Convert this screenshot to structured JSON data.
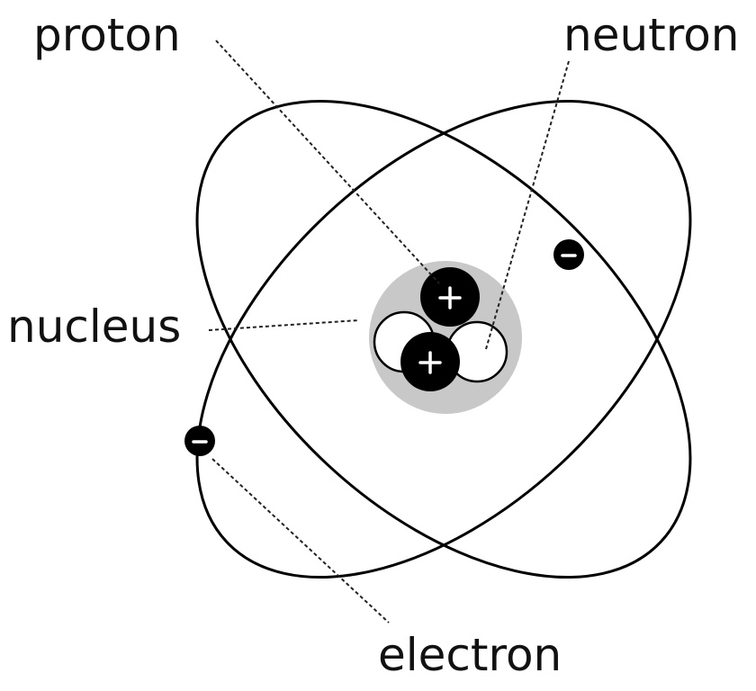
{
  "labels": {
    "proton": "proton",
    "neutron": "neutron",
    "nucleus": "nucleus",
    "electron": "electron"
  },
  "colors": {
    "nucleus_halo": "#c8c8c8",
    "proton": "#000000",
    "neutron": "#ffffff",
    "electron": "#000000",
    "orbit": "#000000"
  },
  "particles": {
    "protons": 2,
    "neutrons": 2,
    "electrons": 2
  }
}
